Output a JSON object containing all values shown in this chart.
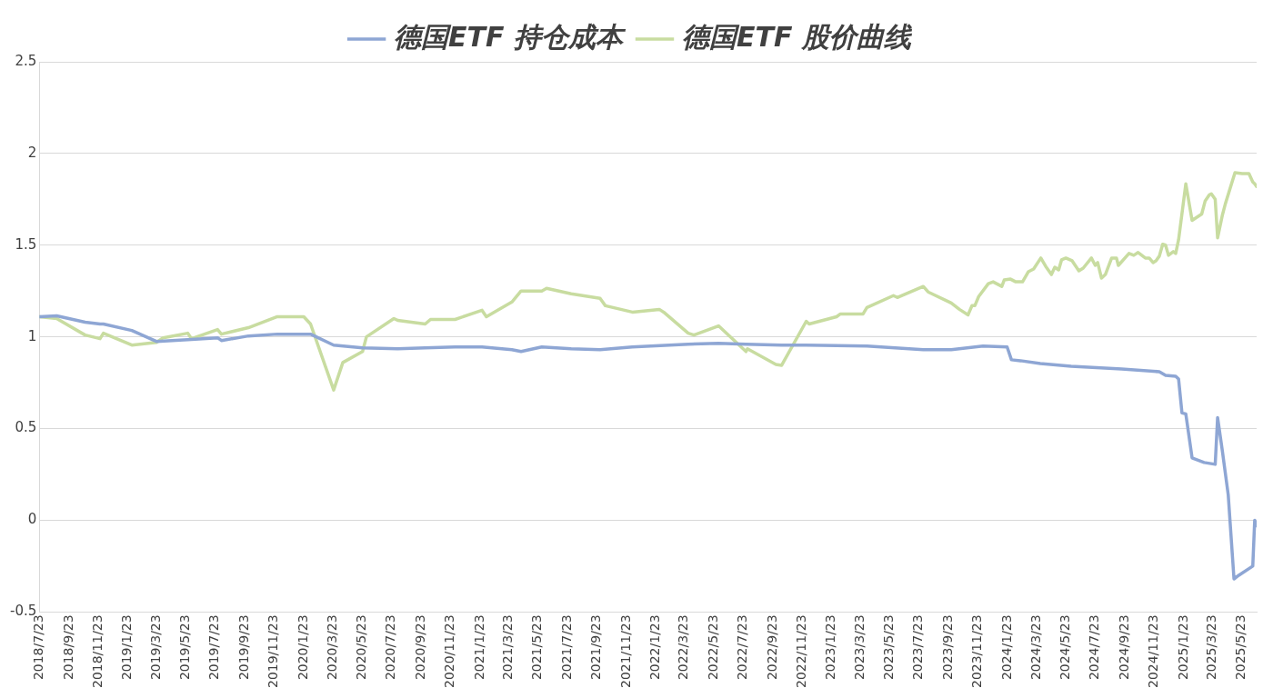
{
  "chart_data": {
    "type": "line",
    "legend": "top",
    "grid": "y",
    "marker": "none",
    "line_style": "solid",
    "xlim": [
      "2018-07-23",
      "2025-06-23"
    ],
    "ylim": [
      -0.5,
      2.5
    ],
    "yticks": [
      -0.5,
      0,
      0.5,
      1,
      1.5,
      2,
      2.5
    ],
    "xticks": [
      {
        "value": "2018-07-23",
        "label": "2018/7/23"
      },
      {
        "value": "2018-09-23",
        "label": "2018/9/23"
      },
      {
        "value": "2018-11-23",
        "label": "2018/11/23"
      },
      {
        "value": "2019-01-23",
        "label": "2019/1/23"
      },
      {
        "value": "2019-03-23",
        "label": "2019/3/23"
      },
      {
        "value": "2019-05-23",
        "label": "2019/5/23"
      },
      {
        "value": "2019-07-23",
        "label": "2019/7/23"
      },
      {
        "value": "2019-09-23",
        "label": "2019/9/23"
      },
      {
        "value": "2019-11-23",
        "label": "2019/11/23"
      },
      {
        "value": "2020-01-23",
        "label": "2020/1/23"
      },
      {
        "value": "2020-03-23",
        "label": "2020/3/23"
      },
      {
        "value": "2020-05-23",
        "label": "2020/5/23"
      },
      {
        "value": "2020-07-23",
        "label": "2020/7/23"
      },
      {
        "value": "2020-09-23",
        "label": "2020/9/23"
      },
      {
        "value": "2020-11-23",
        "label": "2020/11/23"
      },
      {
        "value": "2021-01-23",
        "label": "2021/1/23"
      },
      {
        "value": "2021-03-23",
        "label": "2021/3/23"
      },
      {
        "value": "2021-05-23",
        "label": "2021/5/23"
      },
      {
        "value": "2021-07-23",
        "label": "2021/7/23"
      },
      {
        "value": "2021-09-23",
        "label": "2021/9/23"
      },
      {
        "value": "2021-11-23",
        "label": "2021/11/23"
      },
      {
        "value": "2022-01-23",
        "label": "2022/1/23"
      },
      {
        "value": "2022-03-23",
        "label": "2022/3/23"
      },
      {
        "value": "2022-05-23",
        "label": "2022/5/23"
      },
      {
        "value": "2022-07-23",
        "label": "2022/7/23"
      },
      {
        "value": "2022-09-23",
        "label": "2022/9/23"
      },
      {
        "value": "2022-11-23",
        "label": "2022/11/23"
      },
      {
        "value": "2023-01-23",
        "label": "2023/1/23"
      },
      {
        "value": "2023-03-23",
        "label": "2023/3/23"
      },
      {
        "value": "2023-05-23",
        "label": "2023/5/23"
      },
      {
        "value": "2023-07-23",
        "label": "2023/7/23"
      },
      {
        "value": "2023-09-23",
        "label": "2023/9/23"
      },
      {
        "value": "2023-11-23",
        "label": "2023/11/23"
      },
      {
        "value": "2024-01-23",
        "label": "2024/1/23"
      },
      {
        "value": "2024-03-23",
        "label": "2024/3/23"
      },
      {
        "value": "2024-05-23",
        "label": "2024/5/23"
      },
      {
        "value": "2024-07-23",
        "label": "2024/7/23"
      },
      {
        "value": "2024-09-23",
        "label": "2024/9/23"
      },
      {
        "value": "2024-11-23",
        "label": "2024/11/23"
      },
      {
        "value": "2025-01-23",
        "label": "2025/1/23"
      },
      {
        "value": "2025-03-23",
        "label": "2025/3/23"
      },
      {
        "value": "2025-05-23",
        "label": "2025/5/23"
      }
    ],
    "series": [
      {
        "name": "德国ETF 持仓成本",
        "color": "#8ea6d4",
        "x": [
          "2018-07-23",
          "2018-08-28",
          "2018-10-26",
          "2018-11-26",
          "2018-12-03",
          "2019-01-31",
          "2019-03-23",
          "2019-05-27",
          "2019-07-28",
          "2019-08-05",
          "2019-09-30",
          "2019-11-29",
          "2020-01-23",
          "2020-02-06",
          "2020-03-25",
          "2020-05-24",
          "2020-08-05",
          "2020-10-01",
          "2020-12-02",
          "2021-01-27",
          "2021-03-30",
          "2021-04-18",
          "2021-05-31",
          "2021-07-31",
          "2021-09-29",
          "2021-12-05",
          "2022-03-31",
          "2022-06-02",
          "2022-07-29",
          "2022-10-11",
          "2022-12-01",
          "2023-04-06",
          "2023-08-01",
          "2023-09-28",
          "2023-12-03",
          "2024-01-22",
          "2024-01-31",
          "2024-02-19",
          "2024-03-31",
          "2024-06-03",
          "2024-09-16",
          "2024-12-03",
          "2024-12-16",
          "2025-01-06",
          "2025-01-12",
          "2025-01-19",
          "2025-01-27",
          "2025-02-09",
          "2025-03-06",
          "2025-03-29",
          "2025-04-03",
          "2025-04-13",
          "2025-04-25",
          "2025-05-07",
          "2025-05-17",
          "2025-06-15",
          "2025-06-19",
          "2025-06-23"
        ],
        "values": [
          1.11,
          1.115,
          1.08,
          1.07,
          1.07,
          1.035,
          0.975,
          0.985,
          0.995,
          0.98,
          1.005,
          1.015,
          1.015,
          1.015,
          0.955,
          0.94,
          0.935,
          0.94,
          0.945,
          0.945,
          0.93,
          0.92,
          0.945,
          0.935,
          0.93,
          0.945,
          0.96,
          0.965,
          0.96,
          0.955,
          0.955,
          0.95,
          0.93,
          0.93,
          0.95,
          0.945,
          0.875,
          0.87,
          0.855,
          0.84,
          0.825,
          0.81,
          0.79,
          0.785,
          0.77,
          0.585,
          0.58,
          0.34,
          0.315,
          0.305,
          0.56,
          0.375,
          0.14,
          -0.32,
          -0.3,
          -0.25,
          0,
          -0.03
        ]
      },
      {
        "name": "德国ETF 股价曲线",
        "color": "#c8dca0",
        "x": [
          "2018-07-23",
          "2018-08-28",
          "2018-10-26",
          "2018-11-26",
          "2018-12-03",
          "2019-01-31",
          "2019-03-23",
          "2019-04-06",
          "2019-05-27",
          "2019-06-04",
          "2019-07-28",
          "2019-08-05",
          "2019-09-30",
          "2019-11-29",
          "2020-01-23",
          "2020-02-06",
          "2020-03-25",
          "2020-04-13",
          "2020-05-24",
          "2020-06-01",
          "2020-07-28",
          "2020-08-05",
          "2020-10-01",
          "2020-10-12",
          "2020-12-02",
          "2021-01-27",
          "2021-02-05",
          "2021-03-30",
          "2021-04-18",
          "2021-05-31",
          "2021-06-10",
          "2021-07-31",
          "2021-09-29",
          "2021-10-10",
          "2021-12-05",
          "2022-01-30",
          "2022-02-08",
          "2022-03-31",
          "2022-04-12",
          "2022-06-02",
          "2022-07-29",
          "2022-08-01",
          "2022-09-29",
          "2022-10-11",
          "2022-12-01",
          "2022-12-07",
          "2023-02-02",
          "2023-02-10",
          "2023-03-29",
          "2023-04-06",
          "2023-05-31",
          "2023-06-08",
          "2023-08-01",
          "2023-08-11",
          "2023-09-28",
          "2023-10-15",
          "2023-11-02",
          "2023-11-10",
          "2023-11-16",
          "2023-11-24",
          "2023-12-14",
          "2023-12-24",
          "2024-01-11",
          "2024-01-16",
          "2024-01-29",
          "2024-02-09",
          "2024-02-23",
          "2024-03-06",
          "2024-03-17",
          "2024-04-01",
          "2024-04-11",
          "2024-04-23",
          "2024-04-30",
          "2024-05-08",
          "2024-05-14",
          "2024-05-23",
          "2024-06-05",
          "2024-06-19",
          "2024-06-28",
          "2024-07-15",
          "2024-07-23",
          "2024-07-28",
          "2024-08-05",
          "2024-08-13",
          "2024-08-26",
          "2024-09-05",
          "2024-09-09",
          "2024-10-01",
          "2024-10-11",
          "2024-10-20",
          "2024-11-04",
          "2024-11-12",
          "2024-11-20",
          "2024-11-26",
          "2024-12-03",
          "2024-12-10",
          "2024-12-16",
          "2024-12-22",
          "2025-01-01",
          "2025-01-06",
          "2025-01-12",
          "2025-01-27",
          "2025-02-09",
          "2025-03-01",
          "2025-03-08",
          "2025-03-17",
          "2025-03-21",
          "2025-03-29",
          "2025-04-03",
          "2025-04-13",
          "2025-04-19",
          "2025-05-09",
          "2025-05-24",
          "2025-06-07",
          "2025-06-15",
          "2025-06-19",
          "2025-06-23"
        ],
        "values": [
          1.11,
          1.1,
          1.01,
          0.99,
          1.02,
          0.955,
          0.97,
          0.995,
          1.02,
          0.99,
          1.04,
          1.015,
          1.05,
          1.11,
          1.11,
          1.07,
          0.71,
          0.86,
          0.92,
          1.0,
          1.1,
          1.09,
          1.07,
          1.095,
          1.095,
          1.145,
          1.11,
          1.19,
          1.25,
          1.25,
          1.265,
          1.235,
          1.21,
          1.17,
          1.135,
          1.15,
          1.135,
          1.02,
          1.01,
          1.06,
          0.92,
          0.935,
          0.85,
          0.845,
          1.085,
          1.07,
          1.11,
          1.125,
          1.125,
          1.16,
          1.225,
          1.215,
          1.275,
          1.245,
          1.185,
          1.15,
          1.12,
          1.17,
          1.17,
          1.22,
          1.29,
          1.3,
          1.275,
          1.31,
          1.315,
          1.3,
          1.3,
          1.355,
          1.37,
          1.43,
          1.385,
          1.34,
          1.38,
          1.365,
          1.42,
          1.43,
          1.415,
          1.36,
          1.375,
          1.43,
          1.39,
          1.405,
          1.32,
          1.34,
          1.43,
          1.43,
          1.39,
          1.455,
          1.445,
          1.46,
          1.43,
          1.43,
          1.405,
          1.415,
          1.44,
          1.505,
          1.5,
          1.445,
          1.465,
          1.455,
          1.53,
          1.835,
          1.635,
          1.67,
          1.74,
          1.775,
          1.78,
          1.75,
          1.54,
          1.665,
          1.725,
          1.895,
          1.89,
          1.89,
          1.845,
          1.835,
          1.82
        ]
      }
    ]
  }
}
